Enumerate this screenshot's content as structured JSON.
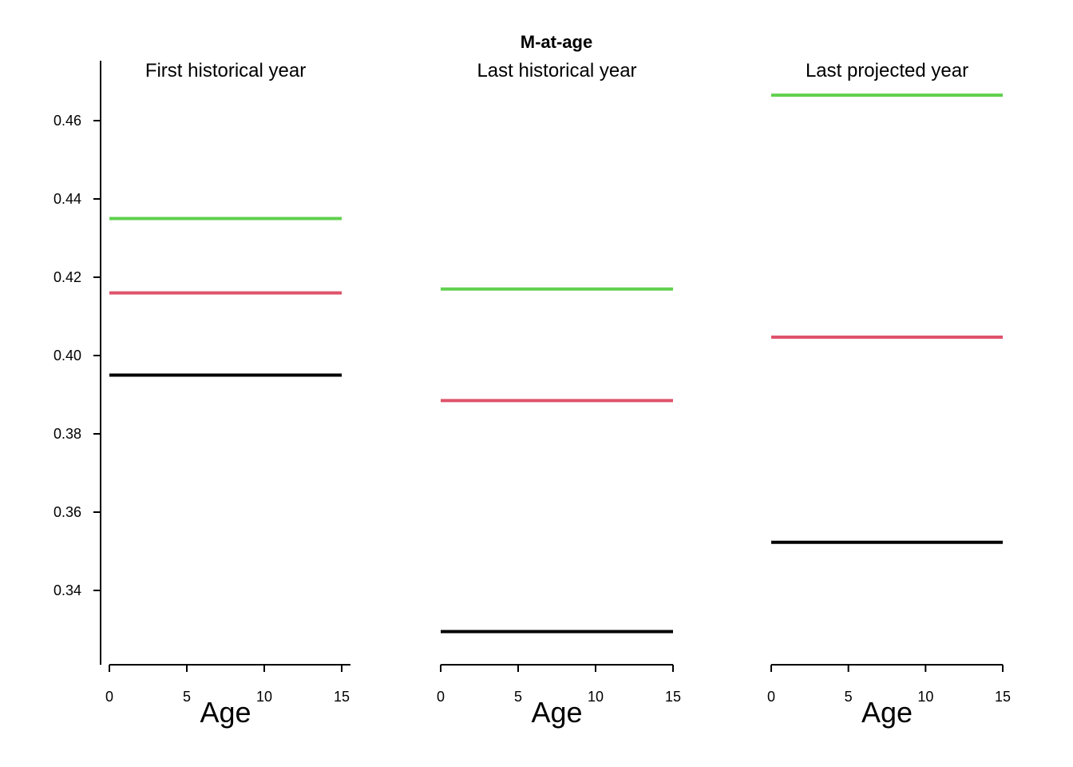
{
  "chart_data": {
    "type": "line",
    "title": "M-at-age",
    "xlabel": "Age",
    "ylabel": "",
    "ylim": [
      0.32,
      0.47
    ],
    "y_ticks": [
      0.34,
      0.36,
      0.38,
      0.4,
      0.42,
      0.44,
      0.46
    ],
    "y_tick_labels": [
      "0.34",
      "0.36",
      "0.38",
      "0.40",
      "0.42",
      "0.44",
      "0.46"
    ],
    "xlim": [
      0,
      15
    ],
    "x_ticks": [
      0,
      5,
      10,
      15
    ],
    "x_tick_labels": [
      "0",
      "5",
      "10",
      "15"
    ],
    "colors": [
      "#000000",
      "#DF536B",
      "#61D04F"
    ],
    "grid": false,
    "panels": [
      {
        "title": "First historical year",
        "x": [
          0,
          15
        ],
        "series": [
          {
            "values": [
              0.395,
              0.395
            ]
          },
          {
            "values": [
              0.416,
              0.416
            ]
          },
          {
            "values": [
              0.435,
              0.435
            ]
          }
        ]
      },
      {
        "title": "Last historical year",
        "x": [
          0,
          15
        ],
        "series": [
          {
            "values": [
              0.3295,
              0.3295
            ]
          },
          {
            "values": [
              0.3885,
              0.3885
            ]
          },
          {
            "values": [
              0.417,
              0.417
            ]
          }
        ]
      },
      {
        "title": "Last projected year",
        "x": [
          0,
          15
        ],
        "series": [
          {
            "values": [
              0.3523,
              0.3523
            ]
          },
          {
            "values": [
              0.4047,
              0.4047
            ]
          },
          {
            "values": [
              0.4665,
              0.4665
            ]
          }
        ]
      }
    ]
  }
}
